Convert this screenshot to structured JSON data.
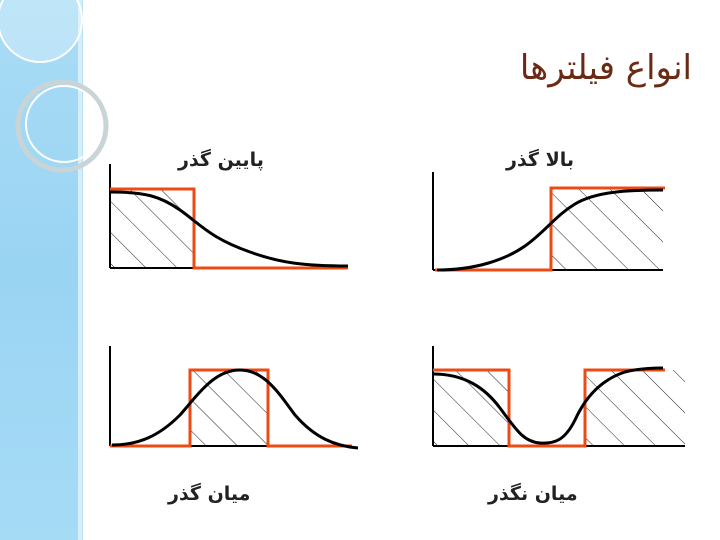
{
  "title": "انواع فیلترها",
  "panels": {
    "lowpass": {
      "label": "پایین گذر"
    },
    "highpass": {
      "label": "بالا گذر"
    },
    "bandpass": {
      "label": "میان گذر"
    },
    "bandstop": {
      "label": "میان نگذر"
    }
  },
  "colors": {
    "ideal_response": "#ee4a14",
    "real_response": "#000000",
    "title": "#6b2a14",
    "sidebar": "#9fd7f4"
  }
}
